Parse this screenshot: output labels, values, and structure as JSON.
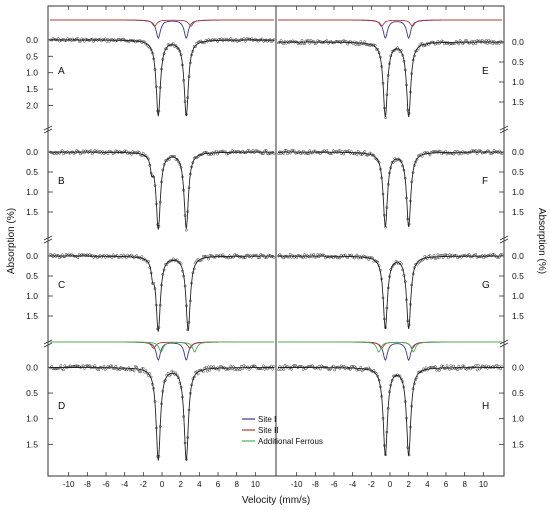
{
  "figure": {
    "x_label": "Velocity (mm/s)",
    "y_label_left": "Absorption (%)",
    "y_label_right": "Absorption (%)",
    "legend": [
      {
        "label": "Site I",
        "color": "#3a3a8c"
      },
      {
        "label": "Site II",
        "color": "#b23a3a"
      },
      {
        "label": "Additional Ferrous",
        "color": "#4caf50"
      }
    ],
    "colors": {
      "data_points": "#333333",
      "fit": "#222222",
      "site1": "#3a3a8c",
      "site2": "#b23a3a",
      "ferrous": "#4caf50"
    }
  },
  "chart_data": [
    {
      "panel": "A",
      "type": "scatter",
      "column": "left",
      "y_ticks": [
        "0.0",
        "0.5",
        "1.0",
        "1.5",
        "2.0"
      ],
      "ylim": [
        2.5,
        -0.3
      ],
      "inverted_y": true,
      "xlim": [
        -12,
        12
      ],
      "x_ticks": [
        -10,
        -8,
        -6,
        -4,
        -2,
        0,
        2,
        4,
        6,
        8,
        10
      ],
      "series": [
        {
          "component": "site1",
          "peaks": [
            -0.4,
            2.6
          ],
          "depth": 2.2
        },
        {
          "component": "site2",
          "peaks": [
            -0.8,
            3.1
          ],
          "depth": 0.25
        }
      ],
      "approx_peak_depth": 2.3
    },
    {
      "panel": "B",
      "type": "scatter",
      "column": "left",
      "y_ticks": [
        "0.0",
        "0.5",
        "1.0",
        "1.5"
      ],
      "ylim": [
        2.0,
        -0.3
      ],
      "inverted_y": true,
      "xlim": [
        -12,
        12
      ],
      "x_ticks": [
        -10,
        -8,
        -6,
        -4,
        -2,
        0,
        2,
        4,
        6,
        8,
        10
      ],
      "approx_peaks": [
        -0.4,
        2.6
      ],
      "approx_peak_depth": 1.9,
      "shoulder_at": -1.1
    },
    {
      "panel": "C",
      "type": "scatter",
      "column": "left",
      "y_ticks": [
        "0.0",
        "0.5",
        "1.0",
        "1.5"
      ],
      "ylim": [
        2.0,
        -0.3
      ],
      "inverted_y": true,
      "xlim": [
        -12,
        12
      ],
      "x_ticks": [
        -10,
        -8,
        -6,
        -4,
        -2,
        0,
        2,
        4,
        6,
        8,
        10
      ],
      "approx_peaks": [
        -0.4,
        2.8
      ],
      "approx_peak_depth": 1.85,
      "shoulder_at": -1.0
    },
    {
      "panel": "D",
      "type": "scatter",
      "column": "left",
      "y_ticks": [
        "0.0",
        "0.5",
        "1.0",
        "1.5"
      ],
      "ylim": [
        2.0,
        -0.3
      ],
      "inverted_y": true,
      "xlim": [
        -12,
        12
      ],
      "x_ticks": [
        -10,
        -8,
        -6,
        -4,
        -2,
        0,
        2,
        4,
        6,
        8,
        10
      ],
      "series": [
        {
          "component": "site1",
          "peaks": [
            -0.4,
            2.6
          ]
        },
        {
          "component": "site2",
          "peaks": [
            -0.9,
            3.0
          ]
        },
        {
          "component": "ferrous",
          "peaks": [
            -0.1,
            3.5
          ]
        }
      ],
      "approx_peak_depth": 1.8
    },
    {
      "panel": "E",
      "type": "scatter",
      "column": "right",
      "y_ticks": [
        "0.0",
        "0.5",
        "1.0",
        "1.5"
      ],
      "ylim": [
        2.0,
        -0.3
      ],
      "inverted_y": true,
      "xlim": [
        -12,
        12
      ],
      "x_ticks": [
        -10,
        -8,
        -6,
        -4,
        -2,
        0,
        2,
        4,
        6,
        8,
        10
      ],
      "series": [
        {
          "component": "site1",
          "peaks": [
            -0.5,
            2.0
          ],
          "depth": 1.8
        },
        {
          "component": "site2",
          "peaks": [
            -0.9,
            2.4
          ],
          "depth": 0.15
        }
      ],
      "approx_peak_depth": 1.85
    },
    {
      "panel": "F",
      "type": "scatter",
      "column": "right",
      "y_ticks": [
        "0.0",
        "0.5",
        "1.0",
        "1.5"
      ],
      "ylim": [
        2.0,
        -0.3
      ],
      "inverted_y": true,
      "xlim": [
        -12,
        12
      ],
      "x_ticks": [
        -10,
        -8,
        -6,
        -4,
        -2,
        0,
        2,
        4,
        6,
        8,
        10
      ],
      "approx_peaks": [
        -0.5,
        2.0
      ],
      "approx_peak_depth": 1.85
    },
    {
      "panel": "G",
      "type": "scatter",
      "column": "right",
      "y_ticks": [
        "0.0",
        "0.5",
        "1.0",
        "1.5"
      ],
      "ylim": [
        2.0,
        -0.3
      ],
      "inverted_y": true,
      "xlim": [
        -12,
        12
      ],
      "x_ticks": [
        -10,
        -8,
        -6,
        -4,
        -2,
        0,
        2,
        4,
        6,
        8,
        10
      ],
      "approx_peaks": [
        -0.5,
        2.0
      ],
      "approx_peak_depth": 1.8
    },
    {
      "panel": "H",
      "type": "scatter",
      "column": "right",
      "y_ticks": [
        "0.0",
        "0.5",
        "1.0",
        "1.5"
      ],
      "ylim": [
        2.0,
        -0.3
      ],
      "inverted_y": true,
      "xlim": [
        -12,
        12
      ],
      "x_ticks": [
        -10,
        -8,
        -6,
        -4,
        -2,
        0,
        2,
        4,
        6,
        8,
        10
      ],
      "series": [
        {
          "component": "site1",
          "peaks": [
            -0.5,
            2.0
          ]
        },
        {
          "component": "site2",
          "peaks": [
            -0.9,
            2.4
          ]
        },
        {
          "component": "ferrous",
          "peaks": [
            -1.2,
            2.5
          ]
        }
      ],
      "approx_peak_depth": 1.7
    }
  ]
}
